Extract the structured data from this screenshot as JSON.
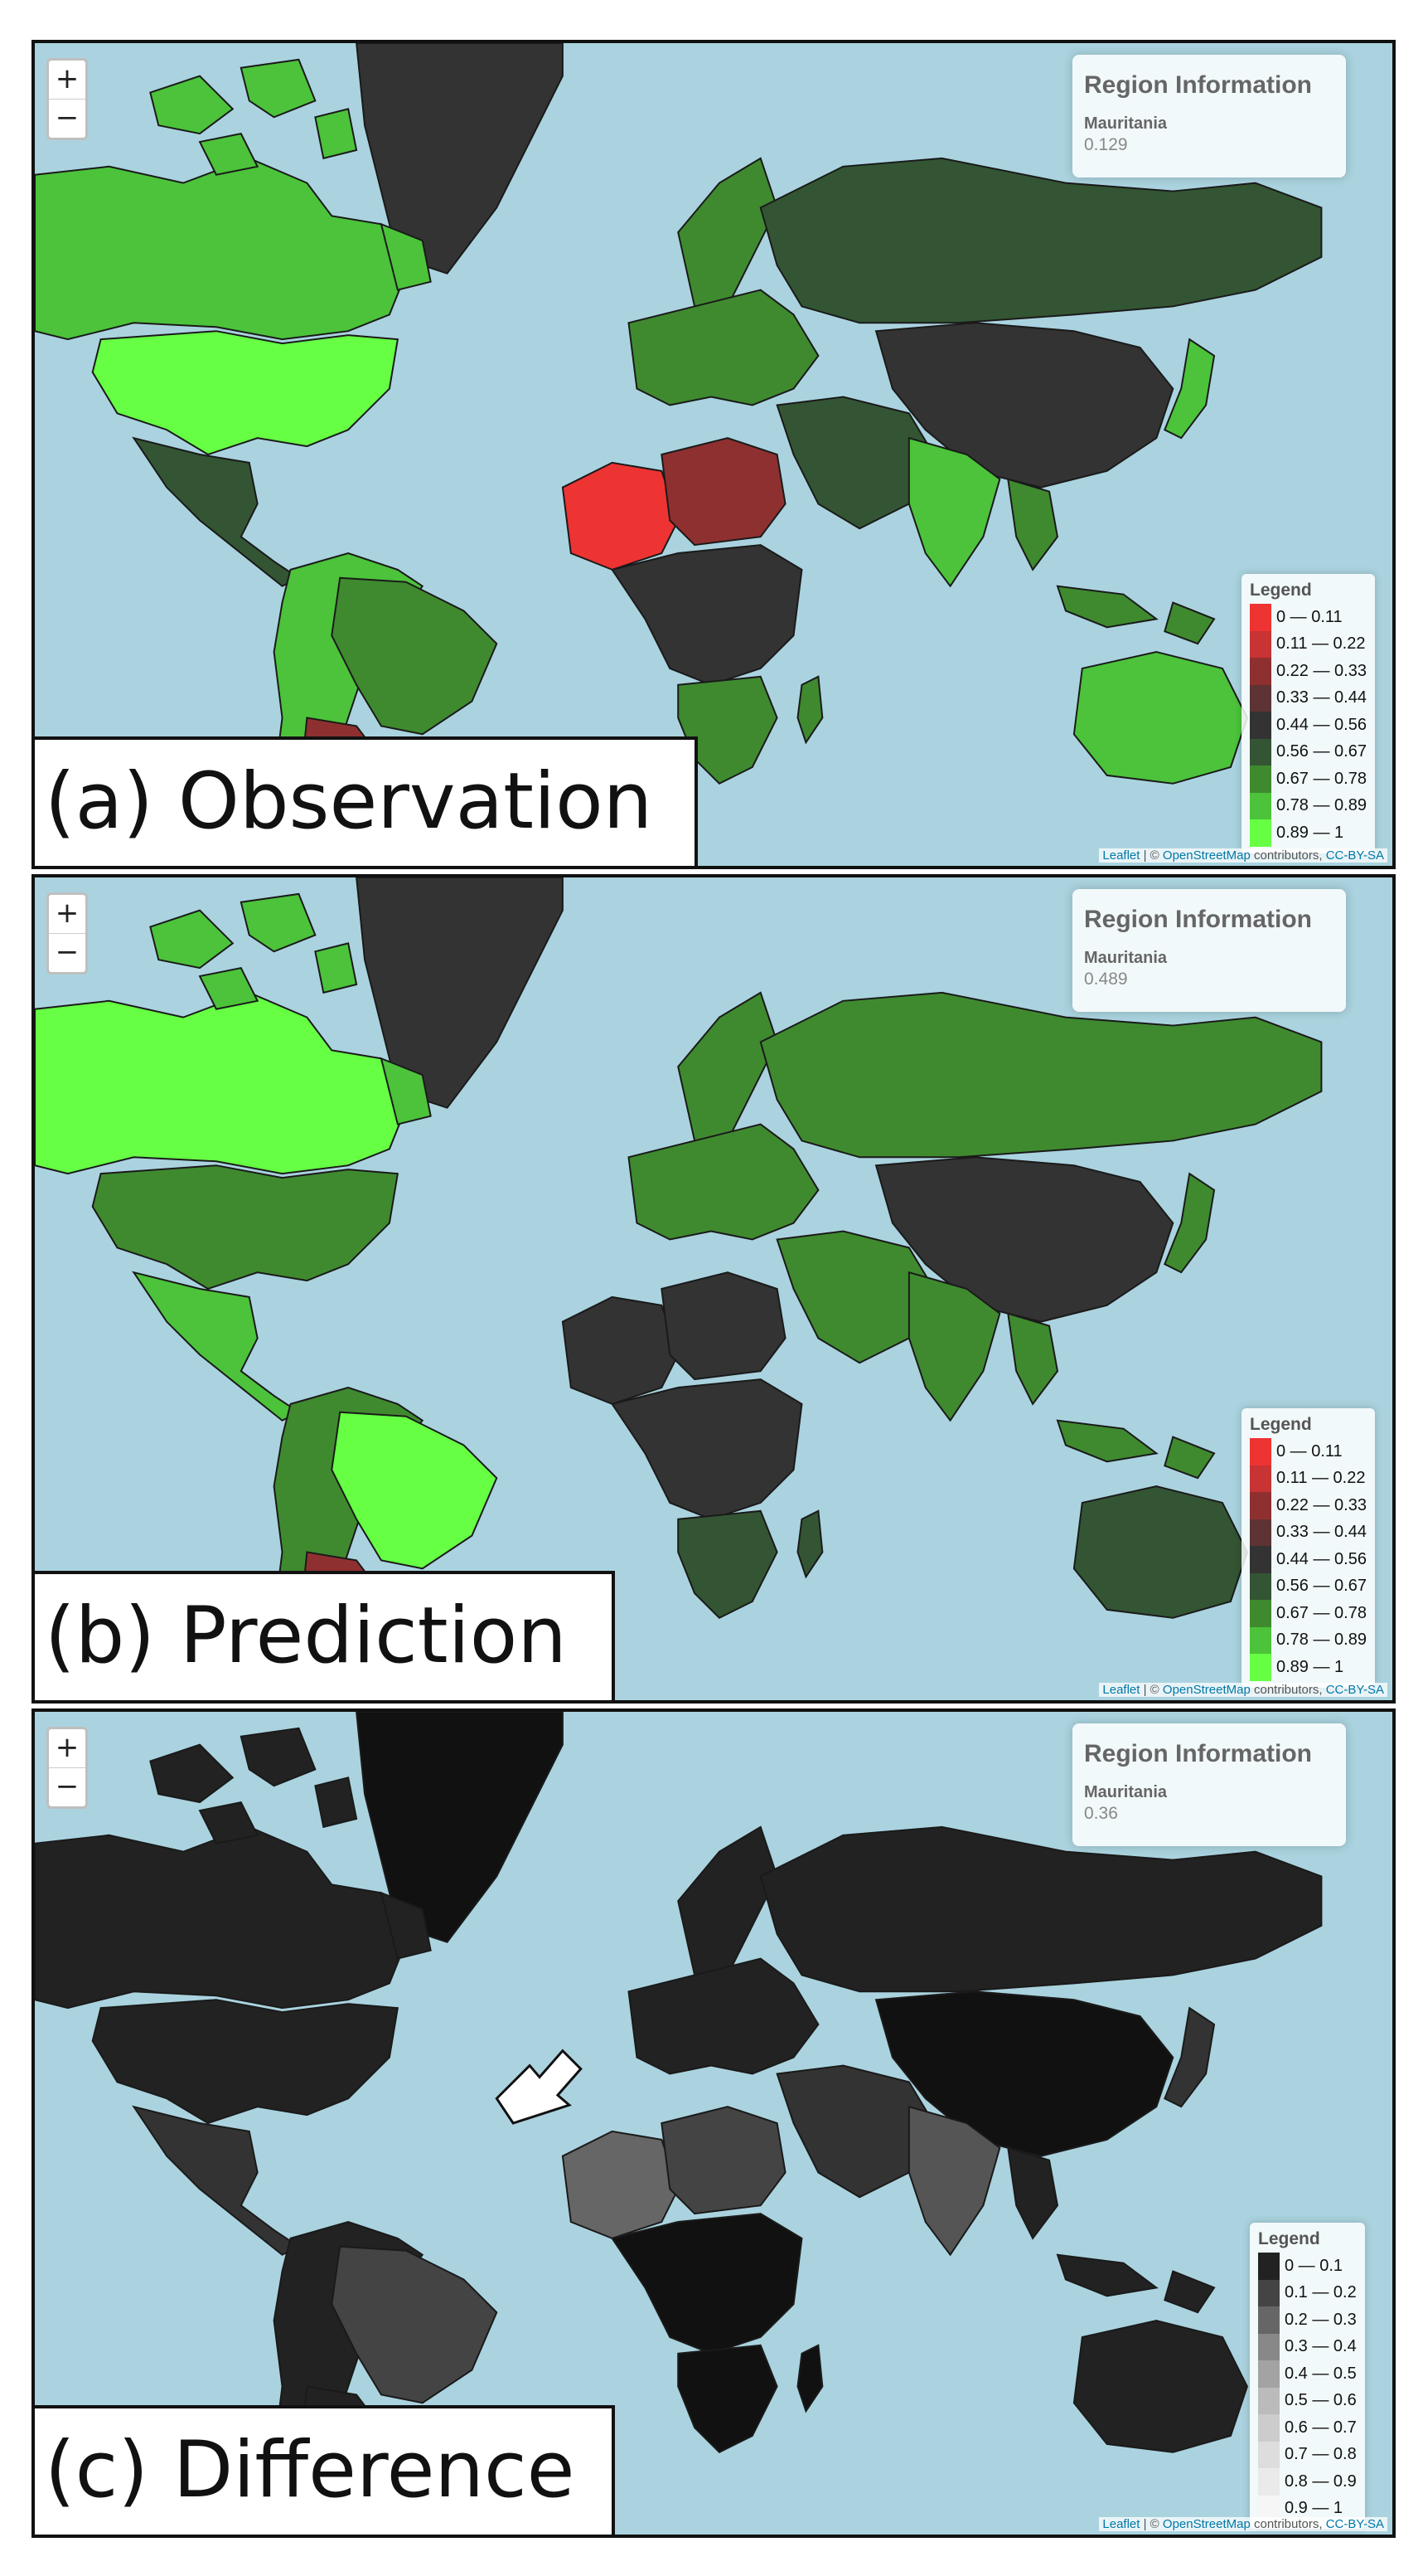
{
  "panels": [
    {
      "caption": "(a) Observation",
      "info": {
        "title": "Region Information",
        "region": "Mauritania",
        "value": "0.129"
      },
      "legend": {
        "title": "Legend",
        "items": [
          {
            "label": "0 — 0.11",
            "color": "#ee3333"
          },
          {
            "label": "0.11 — 0.22",
            "color": "#c83333"
          },
          {
            "label": "0.22 — 0.33",
            "color": "#8f3030"
          },
          {
            "label": "0.33 — 0.44",
            "color": "#5d3333"
          },
          {
            "label": "0.44 — 0.56",
            "color": "#333333"
          },
          {
            "label": "0.56 — 0.67",
            "color": "#335533"
          },
          {
            "label": "0.67 — 0.78",
            "color": "#3f8a2f"
          },
          {
            "label": "0.78 — 0.89",
            "color": "#4cc33a"
          },
          {
            "label": "0.89 — 1",
            "color": "#66ff44"
          }
        ]
      },
      "colors": {
        "north_america": "#4cc33a",
        "usa": "#66ff44",
        "central_america": "#335533",
        "greenland": "#333333",
        "south_america": "#4cc33a",
        "brazil": "#3f8a2f",
        "argentina": "#8f3030",
        "europe": "#3f8a2f",
        "russia": "#335533",
        "west_africa": "#ee3333",
        "sahel": "#8f3030",
        "central_africa": "#333333",
        "southern_africa": "#3f8a2f",
        "middle_east": "#335533",
        "india": "#4cc33a",
        "china": "#333333",
        "southeast_asia": "#3f8a2f",
        "australia": "#4cc33a",
        "japan": "#4cc33a",
        "canada": "#4cc33a"
      }
    },
    {
      "caption": "(b) Prediction",
      "info": {
        "title": "Region Information",
        "region": "Mauritania",
        "value": "0.489"
      },
      "legend": {
        "title": "Legend",
        "items": [
          {
            "label": "0 — 0.11",
            "color": "#ee3333"
          },
          {
            "label": "0.11 — 0.22",
            "color": "#c83333"
          },
          {
            "label": "0.22 — 0.33",
            "color": "#8f3030"
          },
          {
            "label": "0.33 — 0.44",
            "color": "#5d3333"
          },
          {
            "label": "0.44 — 0.56",
            "color": "#333333"
          },
          {
            "label": "0.56 — 0.67",
            "color": "#335533"
          },
          {
            "label": "0.67 — 0.78",
            "color": "#3f8a2f"
          },
          {
            "label": "0.78 — 0.89",
            "color": "#4cc33a"
          },
          {
            "label": "0.89 — 1",
            "color": "#66ff44"
          }
        ]
      },
      "colors": {
        "north_america": "#4cc33a",
        "usa": "#3f8a2f",
        "central_america": "#4cc33a",
        "greenland": "#333333",
        "south_america": "#3f8a2f",
        "brazil": "#66ff44",
        "argentina": "#8f3030",
        "europe": "#3f8a2f",
        "russia": "#3f8a2f",
        "west_africa": "#333333",
        "sahel": "#333333",
        "central_africa": "#333333",
        "southern_africa": "#335533",
        "middle_east": "#3f8a2f",
        "india": "#3f8a2f",
        "china": "#333333",
        "southeast_asia": "#3f8a2f",
        "australia": "#335533",
        "japan": "#3f8a2f",
        "canada": "#66ff44"
      }
    },
    {
      "caption": "(c) Difference",
      "info": {
        "title": "Region Information",
        "region": "Mauritania",
        "value": "0.36"
      },
      "legend": {
        "title": "Legend",
        "items": [
          {
            "label": "0 — 0.1",
            "color": "#222222"
          },
          {
            "label": "0.1 — 0.2",
            "color": "#444444"
          },
          {
            "label": "0.2 — 0.3",
            "color": "#666666"
          },
          {
            "label": "0.3 — 0.4",
            "color": "#888888"
          },
          {
            "label": "0.4 — 0.5",
            "color": "#a3a3a3"
          },
          {
            "label": "0.5 — 0.6",
            "color": "#bbbbbb"
          },
          {
            "label": "0.6 — 0.7",
            "color": "#cccccc"
          },
          {
            "label": "0.7 — 0.8",
            "color": "#dddddd"
          },
          {
            "label": "0.8 — 0.9",
            "color": "#eaeaea"
          },
          {
            "label": "0.9 — 1",
            "color": "#f6f6f6"
          }
        ]
      },
      "colors": {
        "north_america": "#222222",
        "usa": "#222222",
        "central_america": "#333333",
        "greenland": "#111111",
        "south_america": "#222222",
        "brazil": "#444444",
        "argentina": "#222222",
        "europe": "#222222",
        "russia": "#222222",
        "west_africa": "#666666",
        "sahel": "#444444",
        "central_africa": "#111111",
        "southern_africa": "#111111",
        "middle_east": "#333333",
        "india": "#555555",
        "china": "#111111",
        "southeast_asia": "#222222",
        "australia": "#222222",
        "japan": "#333333",
        "canada": "#222222"
      }
    }
  ],
  "zoom": {
    "in": "+",
    "out": "−"
  },
  "attribution": {
    "leaflet": "Leaflet",
    "sep": " | © ",
    "osm": "OpenStreetMap",
    "contrib": " contributors, ",
    "license": "CC-BY-SA"
  }
}
